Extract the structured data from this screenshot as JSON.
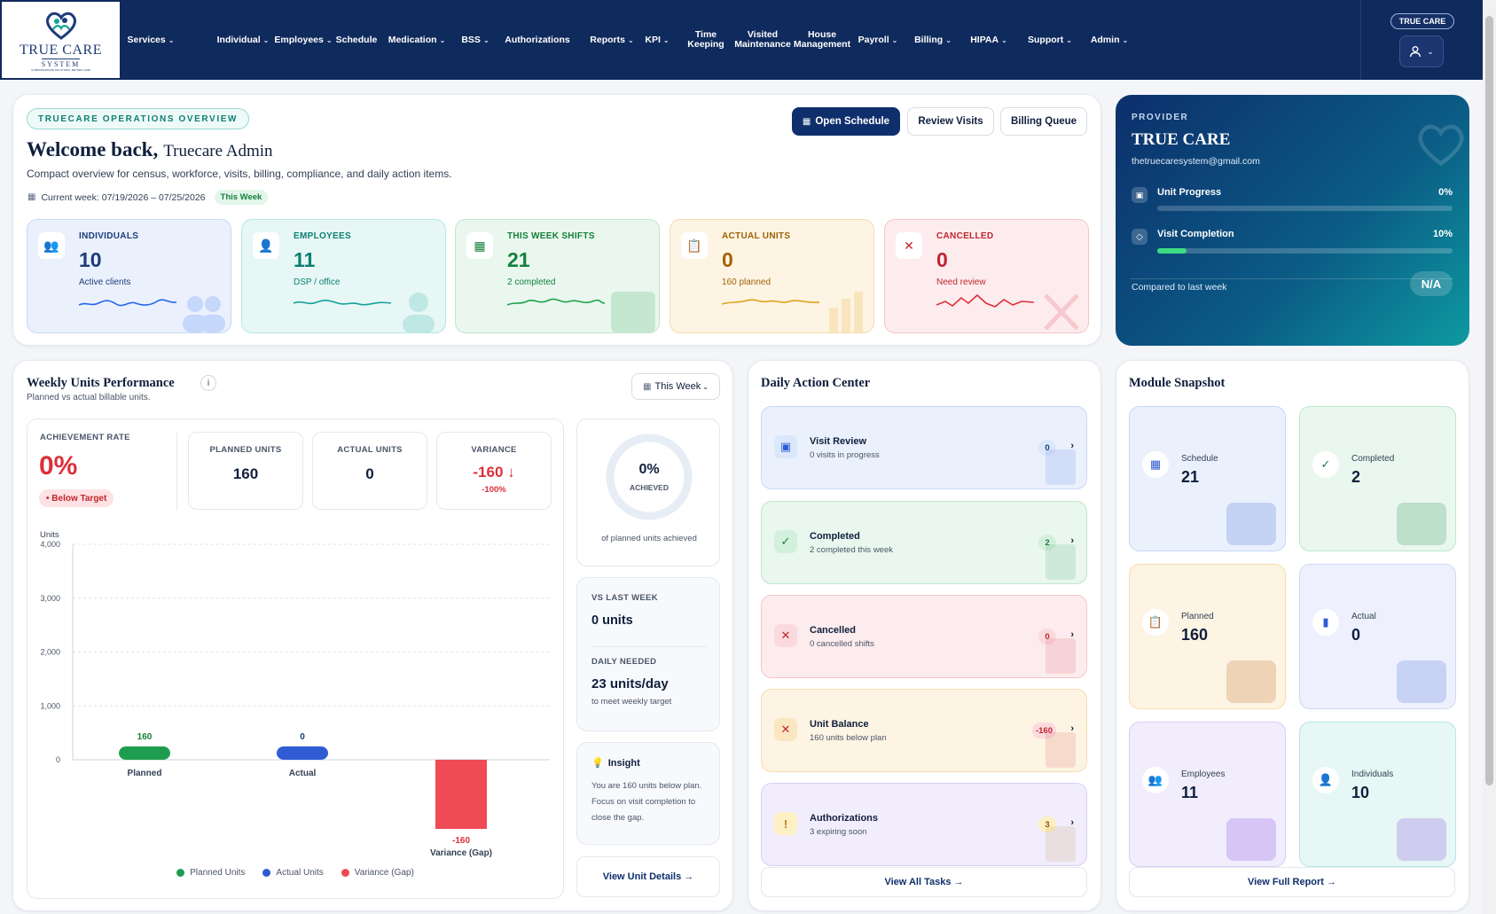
{
  "nav": {
    "logo": {
      "line1": "TRUE CARE",
      "line2": "SYSTEM",
      "tagline": "COMPASSIONATE SOLUTIONS, BETTER CARE"
    },
    "items": [
      {
        "label": "Services",
        "dropdown": true
      },
      {
        "label": "Individual",
        "dropdown": true
      },
      {
        "label": "Employees",
        "dropdown": true
      },
      {
        "label": "Schedule",
        "dropdown": false
      },
      {
        "label": "Medication",
        "dropdown": true
      },
      {
        "label": "BSS",
        "dropdown": true
      },
      {
        "label": "Authorizations",
        "dropdown": false
      },
      {
        "label": "Reports",
        "dropdown": true
      },
      {
        "label": "KPI",
        "dropdown": true
      },
      {
        "label": "Time\nKeeping",
        "dropdown": false
      },
      {
        "label": "Visited\nMaintenance",
        "dropdown": false
      },
      {
        "label": "House\nManagement",
        "dropdown": false
      },
      {
        "label": "Payroll",
        "dropdown": true
      },
      {
        "label": "Billing",
        "dropdown": true
      },
      {
        "label": "HIPAA",
        "dropdown": true
      },
      {
        "label": "Support",
        "dropdown": true
      },
      {
        "label": "Admin",
        "dropdown": true
      }
    ],
    "brand_pill": "TRUE CARE",
    "user_icon": "user-icon"
  },
  "overview": {
    "section_label": "TRUECARE OPERATIONS OVERVIEW",
    "welcome": "Welcome back,",
    "user_name": "Truecare Admin",
    "description": "Compact overview for census, workforce, visits, billing, compliance, and daily action items.",
    "current_week": "Current week: 07/19/2026 – 07/25/2026",
    "week_badge": "This Week",
    "buttons": {
      "open_schedule": "Open Schedule",
      "review_visits": "Review Visits",
      "billing_queue": "Billing Queue"
    },
    "stats": [
      {
        "label": "INDIVIDUALS",
        "value": "10",
        "sub": "Active clients",
        "color": "#1d3c78",
        "bg": "#eaf1fd",
        "border": "#c7d7f5",
        "spark": "#2563eb"
      },
      {
        "label": "EMPLOYEES",
        "value": "11",
        "sub": "DSP / office",
        "color": "#0e7f74",
        "bg": "#e6f7f5",
        "border": "#b8e6df",
        "spark": "#14a39a"
      },
      {
        "label": "THIS WEEK SHIFTS",
        "value": "21",
        "sub": "2 completed",
        "color": "#15803d",
        "bg": "#e9f7ee",
        "border": "#bfe6cc",
        "spark": "#22a04b"
      },
      {
        "label": "ACTUAL UNITS",
        "value": "0",
        "sub": "160 planned",
        "color": "#a16207",
        "bg": "#fdf4e3",
        "border": "#f5dcae",
        "spark": "#e0a21a"
      },
      {
        "label": "CANCELLED",
        "value": "0",
        "sub": "Need review",
        "color": "#c0262d",
        "bg": "#fdecee",
        "border": "#f6c4c9",
        "spark": "#dc2f3a"
      }
    ]
  },
  "provider": {
    "label": "PROVIDER",
    "name": "TRUE CARE",
    "email": "thetruecaresystem@gmail.com",
    "unit_progress_label": "Unit Progress",
    "unit_progress_value": "0%",
    "unit_progress_fraction": 0,
    "visit_completion_label": "Visit Completion",
    "visit_completion_value": "10%",
    "visit_completion_fraction": 0.1,
    "compared_label": "Compared to last week",
    "compared_value": "N/A"
  },
  "units": {
    "title": "Weekly Units Performance",
    "subtitle": "Planned vs actual billable units.",
    "period_select": "This Week",
    "achievement_label": "ACHIEVEMENT RATE",
    "achievement_value": "0%",
    "achievement_badge": "• Below Target",
    "planned_label": "PLANNED UNITS",
    "planned_value": "160",
    "actual_label": "ACTUAL UNITS",
    "actual_value": "0",
    "variance_label": "VARIANCE",
    "variance_value": "-160 ↓",
    "variance_pct": "-100%",
    "donut_value": "0%",
    "donut_label": "ACHIEVED",
    "donut_caption": "of planned units achieved",
    "vs_last_week_label": "VS LAST WEEK",
    "vs_last_week_value": "0 units",
    "daily_needed_label": "DAILY NEEDED",
    "daily_needed_value": "23 units/day",
    "daily_needed_sub": "to meet weekly target",
    "insight_title": "Insight",
    "insight_text": "You are 160 units below plan. Focus on visit completion to close the gap.",
    "view_details": "View Unit Details →"
  },
  "chart_data": {
    "type": "bar",
    "ylabel": "Units",
    "ylim": [
      -600,
      4000
    ],
    "yticks": [
      "4,000",
      "3,000",
      "2,000",
      "1,000",
      "0"
    ],
    "grid": true,
    "categories": [
      "Planned",
      "Actual",
      "Variance (Gap)"
    ],
    "values": [
      160,
      0,
      -160
    ],
    "value_labels": [
      "160",
      "0",
      "-160"
    ],
    "colors": [
      "#1f9d4f",
      "#2f5bd3",
      "#ee4b55"
    ],
    "legend": [
      "Planned Units",
      "Actual Units",
      "Variance (Gap)"
    ],
    "legend_position": "bottom"
  },
  "actions": {
    "title": "Daily Action Center",
    "items": [
      {
        "title": "Visit Review",
        "sub": "0 visits in progress",
        "badge": "0",
        "icon": "▣",
        "bg": "#eaf1fd",
        "border": "#c7d7f5",
        "iconbg": "#dbe7fb",
        "iconcolor": "#2f5bd3",
        "badgebg": "#dbe7fb",
        "badgecolor": "#1d3c78"
      },
      {
        "title": "Completed",
        "sub": "2 completed this week",
        "badge": "2",
        "icon": "✓",
        "bg": "#e9f7ee",
        "border": "#bfe6cc",
        "iconbg": "#d3f0dd",
        "iconcolor": "#15803d",
        "badgebg": "#d3f0dd",
        "badgecolor": "#15803d"
      },
      {
        "title": "Cancelled",
        "sub": "0 cancelled shifts",
        "badge": "0",
        "icon": "✕",
        "bg": "#fdecee",
        "border": "#f6c4c9",
        "iconbg": "#fbdadd",
        "iconcolor": "#c0262d",
        "badgebg": "#fbdadd",
        "badgecolor": "#c0262d"
      },
      {
        "title": "Unit Balance",
        "sub": "160 units below plan",
        "badge": "-160",
        "icon": "✕",
        "bg": "#fdf4e3",
        "border": "#f5dcae",
        "iconbg": "#fbe6c2",
        "iconcolor": "#c0262d",
        "badgebg": "#fbdadd",
        "badgecolor": "#c0262d"
      },
      {
        "title": "Authorizations",
        "sub": "3 expiring soon",
        "badge": "3",
        "icon": "!",
        "bg": "#f1edfc",
        "border": "#d8cff6",
        "iconbg": "#fdf0c4",
        "iconcolor": "#b7791f",
        "badgebg": "#fdf0c4",
        "badgecolor": "#8a5a00"
      }
    ],
    "view_all": "View All Tasks →"
  },
  "modules": {
    "title": "Module Snapshot",
    "items": [
      {
        "label": "Schedule",
        "value": "21",
        "icon": "calendar-icon",
        "bg": "#eaf1fd",
        "border": "#c7d7f5"
      },
      {
        "label": "Completed",
        "value": "2",
        "icon": "check-icon",
        "bg": "#e9f7ee",
        "border": "#bfe6cc"
      },
      {
        "label": "Planned",
        "value": "160",
        "icon": "clipboard-icon",
        "bg": "#fdf4e3",
        "border": "#f5dcae"
      },
      {
        "label": "Actual",
        "value": "0",
        "icon": "bar-icon",
        "bg": "#eef1fd",
        "border": "#cfd8f5"
      },
      {
        "label": "Employees",
        "value": "11",
        "icon": "people-icon",
        "bg": "#f1edfc",
        "border": "#d8cff6"
      },
      {
        "label": "Individuals",
        "value": "10",
        "icon": "person-icon",
        "bg": "#e6f7f5",
        "border": "#b8e6df"
      }
    ],
    "view_full": "View Full Report →"
  }
}
